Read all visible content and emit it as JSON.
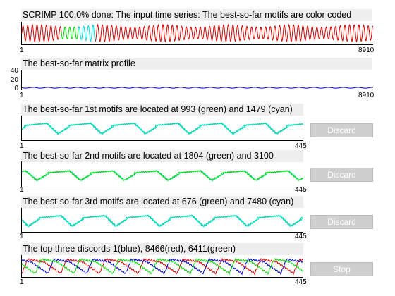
{
  "panel1": {
    "title": "SCRIMP 100.0% done: The input time series: The best-so-far motifs are color coded",
    "x_start": "1",
    "x_end": "8910"
  },
  "panel2": {
    "title": "The best-so-far matrix profile",
    "y_ticks": [
      "40",
      "20",
      "0"
    ],
    "x_start": "1",
    "x_end": "8910"
  },
  "motif1": {
    "title": "The best-so-far 1st motifs are located at 993 (green) and 1479 (cyan)",
    "x_start": "1",
    "x_end": "445",
    "button": "Discard"
  },
  "motif2": {
    "title": "The best-so-far 2nd motifs are located at 1804 (green) and 3100",
    "x_start": "1",
    "x_end": "445",
    "button": "Discard"
  },
  "motif3": {
    "title": "The best-so-far 3rd motifs are located at 676 (green) and 7480 (cyan)",
    "x_start": "1",
    "x_end": "445",
    "button": "Discard"
  },
  "discords": {
    "title": "The top three discords 1(blue), 8466(red), 6411(green)",
    "x_start": "1",
    "x_end": "445",
    "button": "Stop"
  },
  "colors": {
    "series": "#dd0000",
    "green": "#00dd00",
    "cyan": "#00dddd",
    "blue": "#0000cc",
    "teal": "#00d8a0"
  }
}
